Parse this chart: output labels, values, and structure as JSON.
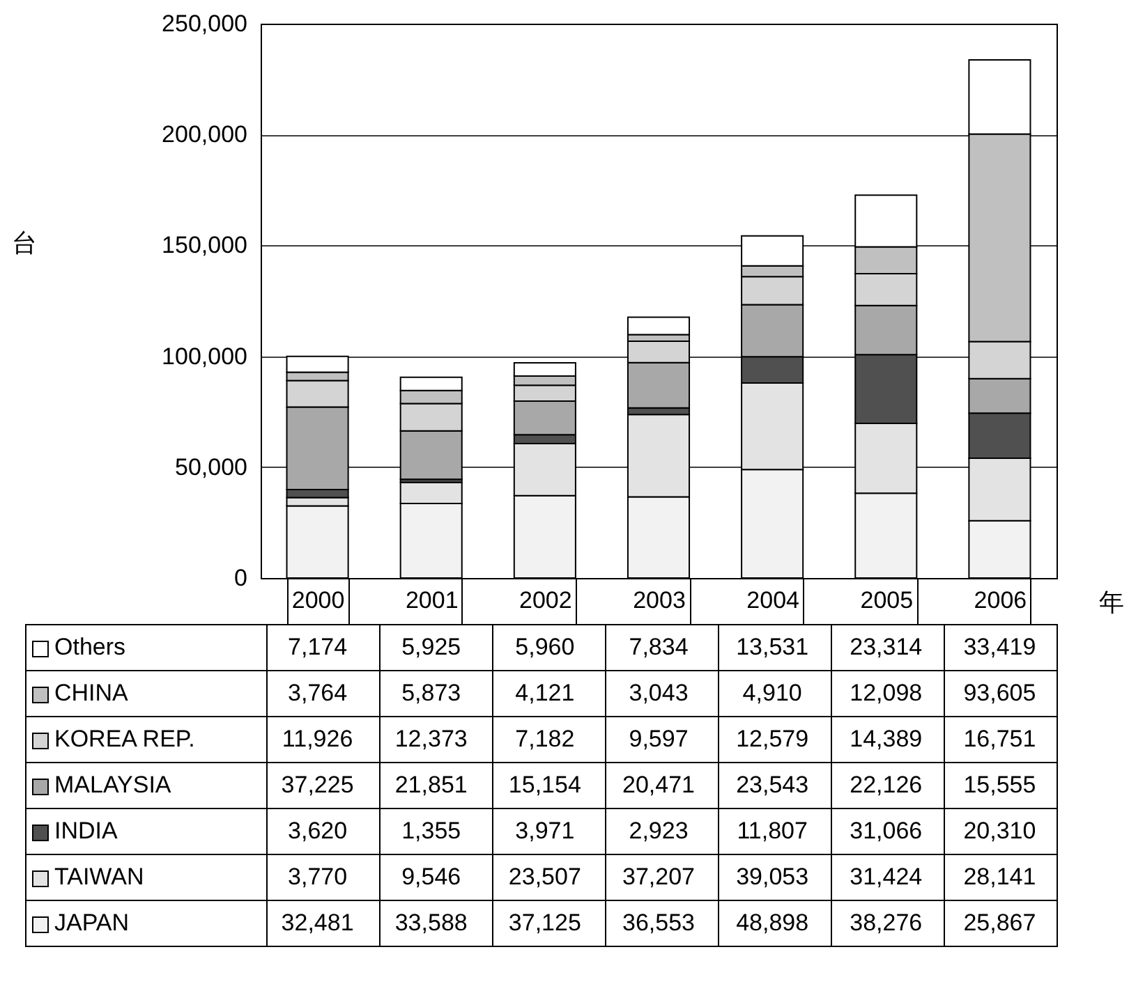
{
  "chart_data": {
    "type": "bar",
    "stacked": true,
    "xlabel": "年",
    "ylabel": "台",
    "categories": [
      "2000",
      "2001",
      "2002",
      "2003",
      "2004",
      "2005",
      "2006"
    ],
    "ylim": [
      0,
      250000
    ],
    "yticks": [
      {
        "value": 0,
        "label": "0"
      },
      {
        "value": 50000,
        "label": "50,000"
      },
      {
        "value": 100000,
        "label": "100,000"
      },
      {
        "value": 150000,
        "label": "150,000"
      },
      {
        "value": 200000,
        "label": "200,000"
      },
      {
        "value": 250000,
        "label": "250,000"
      }
    ],
    "grid": "y",
    "legend": "bottom",
    "series": [
      {
        "name": "JAPAN",
        "color": "#f2f2f2",
        "values": [
          32481,
          33588,
          37125,
          36553,
          48898,
          38276,
          25867
        ],
        "value_labels": [
          "32,481",
          "33,588",
          "37,125",
          "36,553",
          "48,898",
          "38,276",
          "25,867"
        ]
      },
      {
        "name": "TAIWAN",
        "color": "#e3e3e3",
        "values": [
          3770,
          9546,
          23507,
          37207,
          39053,
          31424,
          28141
        ],
        "value_labels": [
          "3,770",
          "9,546",
          "23,507",
          "37,207",
          "39,053",
          "31,424",
          "28,141"
        ]
      },
      {
        "name": "INDIA",
        "color": "#505050",
        "values": [
          3620,
          1355,
          3971,
          2923,
          11807,
          31066,
          20310
        ],
        "value_labels": [
          "3,620",
          "1,355",
          "3,971",
          "2,923",
          "11,807",
          "31,066",
          "20,310"
        ]
      },
      {
        "name": "MALAYSIA",
        "color": "#a8a8a8",
        "values": [
          37225,
          21851,
          15154,
          20471,
          23543,
          22126,
          15555
        ],
        "value_labels": [
          "37,225",
          "21,851",
          "15,154",
          "20,471",
          "23,543",
          "22,126",
          "15,555"
        ]
      },
      {
        "name": "KOREA REP.",
        "color": "#d4d4d4",
        "values": [
          11926,
          12373,
          7182,
          9597,
          12579,
          14389,
          16751
        ],
        "value_labels": [
          "11,926",
          "12,373",
          "7,182",
          "9,597",
          "12,579",
          "14,389",
          "16,751"
        ]
      },
      {
        "name": "CHINA",
        "color": "#c0c0c0",
        "values": [
          3764,
          5873,
          4121,
          3043,
          4910,
          12098,
          93605
        ],
        "value_labels": [
          "3,764",
          "5,873",
          "4,121",
          "3,043",
          "4,910",
          "12,098",
          "93,605"
        ]
      },
      {
        "name": "Others",
        "color": "#ffffff",
        "values": [
          7174,
          5925,
          5960,
          7834,
          13531,
          23314,
          33419
        ],
        "value_labels": [
          "7,174",
          "5,925",
          "5,960",
          "7,834",
          "13,531",
          "23,314",
          "33,419"
        ]
      }
    ]
  }
}
